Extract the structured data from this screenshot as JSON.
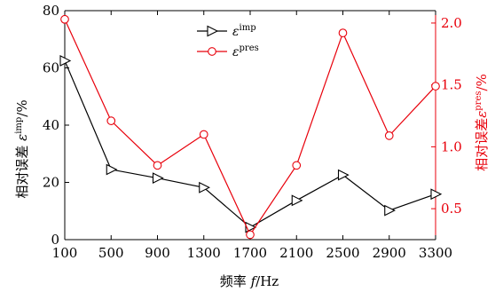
{
  "chart_data": {
    "type": "line",
    "x": [
      100,
      500,
      900,
      1300,
      1700,
      2100,
      2500,
      2900,
      3300
    ],
    "xlabel": "频率 f/Hz",
    "xlim": [
      100,
      3300
    ],
    "grid": false,
    "legend_placement": "top-center",
    "y_left": {
      "label": "相对误差 εimp/%",
      "ylim": [
        0,
        80
      ],
      "ticks": [
        0,
        20,
        40,
        60,
        80
      ]
    },
    "y_right": {
      "label": "相对误差εpres/%",
      "ylim": [
        0.25,
        2.1
      ],
      "ticks": [
        0.5,
        1.0,
        1.5,
        2.0
      ],
      "color": "#e8000b"
    },
    "series": [
      {
        "name": "εimp",
        "axis": "left",
        "color": "#000000",
        "marker": "right-triangle",
        "values": [
          62.5,
          24.5,
          21.5,
          18.2,
          4.3,
          13.7,
          22.6,
          10.2,
          15.9
        ]
      },
      {
        "name": "εpres",
        "axis": "right",
        "color": "#e8000b",
        "marker": "circle",
        "values": [
          2.03,
          1.21,
          0.85,
          1.1,
          0.29,
          0.85,
          1.92,
          1.09,
          1.49
        ]
      }
    ],
    "legend": [
      {
        "symbol": "ε",
        "superscript": "imp"
      },
      {
        "symbol": "ε",
        "superscript": "pres"
      }
    ]
  }
}
